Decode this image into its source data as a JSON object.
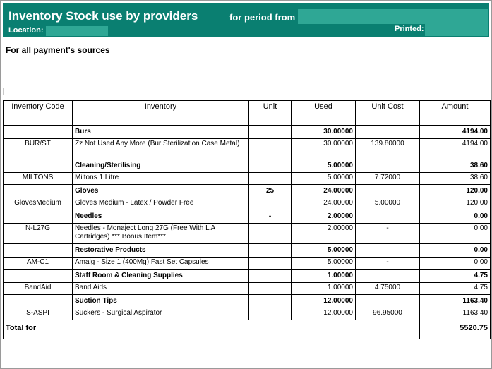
{
  "header": {
    "title": "Inventory Stock use by providers",
    "period_label": "for period from",
    "period_value": "",
    "location_label": "Location:",
    "location_value": "",
    "printed_label": "Printed:",
    "printed_value": ""
  },
  "subtitle": "For all payment's sources",
  "columns": {
    "code": "Inventory Code",
    "inventory": "Inventory",
    "unit": "Unit",
    "used": "Used",
    "unit_cost": "Unit Cost",
    "amount": "Amount"
  },
  "groups": [
    {
      "name": "Burs",
      "unit": "",
      "used": "30.00000",
      "amount": "4194.00",
      "items": [
        {
          "code": "BUR/ST",
          "name": "Zz Not Used Any More (Bur Sterilization Case Metal)",
          "unit": "",
          "used": "30.00000",
          "unit_cost": "139.80000",
          "amount": "4194.00"
        }
      ]
    },
    {
      "name": "Cleaning/Sterilising",
      "unit": "",
      "used": "5.00000",
      "amount": "38.60",
      "items": [
        {
          "code": "MILTONS",
          "name": "Miltons 1 Litre",
          "unit": "",
          "used": "5.00000",
          "unit_cost": "7.72000",
          "amount": "38.60"
        }
      ]
    },
    {
      "name": "Gloves",
      "unit": "25",
      "used": "24.00000",
      "amount": "120.00",
      "items": [
        {
          "code": "GlovesMedium",
          "name": "Gloves Medium - Latex / Powder Free",
          "unit": "",
          "used": "24.00000",
          "unit_cost": "5.00000",
          "amount": "120.00"
        }
      ]
    },
    {
      "name": "Needles",
      "unit": "-",
      "used": "2.00000",
      "amount": "0.00",
      "items": [
        {
          "code": "N-L27G",
          "name": "Needles - Monaject Long  27G (Free With L A Cartridges) *** Bonus Item***",
          "unit": "",
          "used": "2.00000",
          "unit_cost": "-",
          "amount": "0.00"
        }
      ]
    },
    {
      "name": "Restorative Products",
      "unit": "",
      "used": "5.00000",
      "amount": "0.00",
      "items": [
        {
          "code": "AM-C1",
          "name": "Amalg - Size 1 (400Mg) Fast Set Capsules",
          "unit": "",
          "used": "5.00000",
          "unit_cost": "-",
          "amount": "0.00"
        }
      ]
    },
    {
      "name": "Staff Room & Cleaning Supplies",
      "unit": "",
      "used": "1.00000",
      "amount": "4.75",
      "items": [
        {
          "code": "BandAid",
          "name": "Band Aids",
          "unit": "",
          "used": "1.00000",
          "unit_cost": "4.75000",
          "amount": "4.75"
        }
      ]
    },
    {
      "name": "Suction Tips",
      "unit": "",
      "used": "12.00000",
      "amount": "1163.40",
      "items": [
        {
          "code": "S-ASPI",
          "name": "Suckers - Surgical Aspirator",
          "unit": "",
          "used": "12.00000",
          "unit_cost": "96.95000",
          "amount": "1163.40"
        }
      ]
    }
  ],
  "total": {
    "label": "Total for",
    "amount": "5520.75"
  }
}
